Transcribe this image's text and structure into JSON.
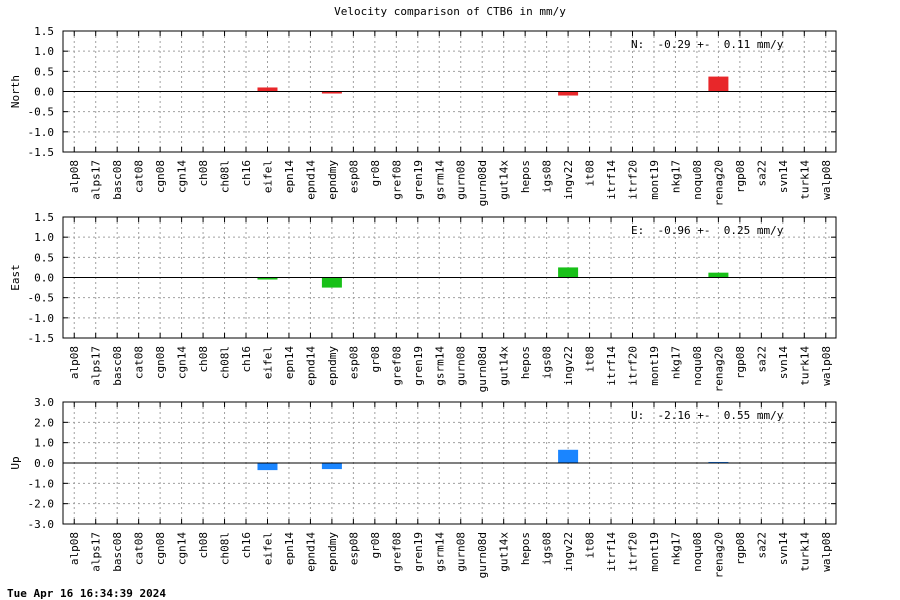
{
  "title": "Velocity comparison of CTB6 in mm/y",
  "timestamp": "Tue Apr 16 16:34:39 2024",
  "chart_data": {
    "type": "bar",
    "categories": [
      "alp08",
      "alps17",
      "basc08",
      "cat08",
      "cgn08",
      "cgn14",
      "ch08",
      "ch08l",
      "ch16",
      "eifel",
      "epn14",
      "epnd14",
      "epndmy",
      "esp08",
      "gr08",
      "gref08",
      "gren19",
      "gsrm14",
      "gurn08",
      "gurn08d",
      "gut14x",
      "hepos",
      "igs08",
      "ingv22",
      "it08",
      "itrf14",
      "itrf20",
      "mont19",
      "nkg17",
      "noqu08",
      "renag20",
      "rgp08",
      "sa22",
      "svn14",
      "turk14",
      "walp08"
    ],
    "panels": [
      {
        "ylabel": "North",
        "annotation": "N:  -0.29 +-  0.11 mm/y",
        "ylim": [
          -1.5,
          1.5
        ],
        "yticks": [
          "1.5",
          "1.0",
          "0.5",
          "0.0",
          "-0.5",
          "-1.0",
          "-1.5"
        ],
        "color": "#e8272a",
        "values": {
          "eifel": 0.1,
          "epndmy": -0.05,
          "ingv22": -0.1,
          "renag20": 0.37
        }
      },
      {
        "ylabel": "East",
        "annotation": "E:  -0.96 +-  0.25 mm/y",
        "ylim": [
          -1.5,
          1.5
        ],
        "yticks": [
          "1.5",
          "1.0",
          "0.5",
          "0.0",
          "-0.5",
          "-1.0",
          "-1.5"
        ],
        "color": "#18c018",
        "values": {
          "eifel": -0.05,
          "epndmy": -0.25,
          "ingv22": 0.25,
          "renag20": 0.12
        }
      },
      {
        "ylabel": "Up",
        "annotation": "U:  -2.16 +-  0.55 mm/y",
        "ylim": [
          -3.0,
          3.0
        ],
        "yticks": [
          "3.0",
          "2.0",
          "1.0",
          "0.0",
          "-1.0",
          "-2.0",
          "-3.0"
        ],
        "color": "#1a85ff",
        "values": {
          "eifel": -0.35,
          "epndmy": -0.3,
          "ingv22": 0.65,
          "renag20": 0.05
        }
      }
    ],
    "grid": true
  }
}
